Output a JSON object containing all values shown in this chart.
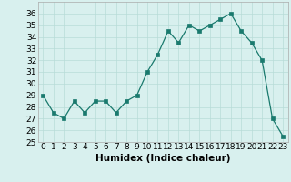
{
  "x": [
    0,
    1,
    2,
    3,
    4,
    5,
    6,
    7,
    8,
    9,
    10,
    11,
    12,
    13,
    14,
    15,
    16,
    17,
    18,
    19,
    20,
    21,
    22,
    23
  ],
  "y": [
    29,
    27.5,
    27,
    28.5,
    27.5,
    28.5,
    28.5,
    27.5,
    28.5,
    29,
    31,
    32.5,
    34.5,
    33.5,
    35,
    34.5,
    35,
    35.5,
    36,
    34.5,
    33.5,
    32,
    27,
    25.5
  ],
  "line_color": "#1a7a6e",
  "marker_color": "#1a7a6e",
  "bg_color": "#d8f0ee",
  "grid_color": "#b8dcd8",
  "xlabel": "Humidex (Indice chaleur)",
  "ylim": [
    25,
    37
  ],
  "xlim": [
    -0.5,
    23.5
  ],
  "yticks": [
    25,
    26,
    27,
    28,
    29,
    30,
    31,
    32,
    33,
    34,
    35,
    36
  ],
  "xticks": [
    0,
    1,
    2,
    3,
    4,
    5,
    6,
    7,
    8,
    9,
    10,
    11,
    12,
    13,
    14,
    15,
    16,
    17,
    18,
    19,
    20,
    21,
    22,
    23
  ],
  "label_fontsize": 7.5,
  "tick_fontsize": 6.5
}
